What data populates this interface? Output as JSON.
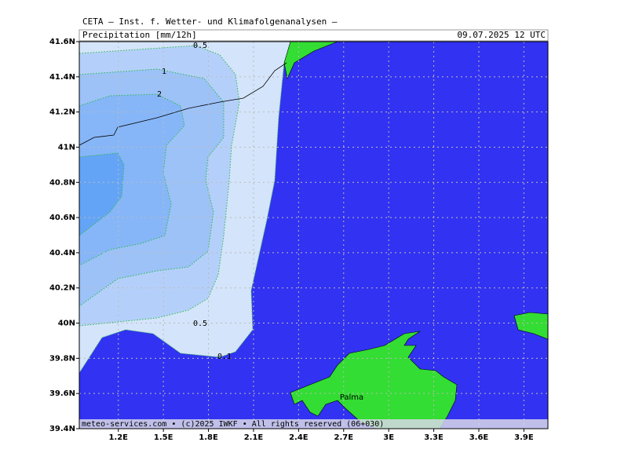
{
  "header": {
    "title": "CETA — Inst. f. Wetter- und Klimafolgenanalysen —",
    "field": "Precipitation [mm/12h]",
    "date": "09.07.2025  12 UTC"
  },
  "map": {
    "lonlim": [
      0.94,
      4.06
    ],
    "latlim": [
      39.4,
      41.6
    ],
    "xticks": [
      {
        "value": 1.2,
        "label": "1.2E"
      },
      {
        "value": 1.5,
        "label": "1.5E"
      },
      {
        "value": 1.8,
        "label": "1.8E"
      },
      {
        "value": 2.1,
        "label": "2.1E"
      },
      {
        "value": 2.4,
        "label": "2.4E"
      },
      {
        "value": 2.7,
        "label": "2.7E"
      },
      {
        "value": 3.0,
        "label": "3E"
      },
      {
        "value": 3.3,
        "label": "3.3E"
      },
      {
        "value": 3.6,
        "label": "3.6E"
      },
      {
        "value": 3.9,
        "label": "3.9E"
      }
    ],
    "yticks": [
      {
        "value": 39.4,
        "label": "39.4N"
      },
      {
        "value": 39.6,
        "label": "39.6N"
      },
      {
        "value": 39.8,
        "label": "39.8N"
      },
      {
        "value": 40.0,
        "label": "40N"
      },
      {
        "value": 40.2,
        "label": "40.2N"
      },
      {
        "value": 40.4,
        "label": "40.4N"
      },
      {
        "value": 40.6,
        "label": "40.6N"
      },
      {
        "value": 40.8,
        "label": "40.8N"
      },
      {
        "value": 41.0,
        "label": "41N"
      },
      {
        "value": 41.2,
        "label": "41.2N"
      },
      {
        "value": 41.4,
        "label": "41.4N"
      },
      {
        "value": 41.6,
        "label": "41.6N"
      }
    ],
    "contour_labels": [
      "0.5",
      "1",
      "2",
      "0.5",
      "0.1"
    ],
    "place_labels": [
      "Palma"
    ]
  },
  "footer": "meteo-services.com • (c)2025 IWKF • All rights reserved (06+030)"
}
